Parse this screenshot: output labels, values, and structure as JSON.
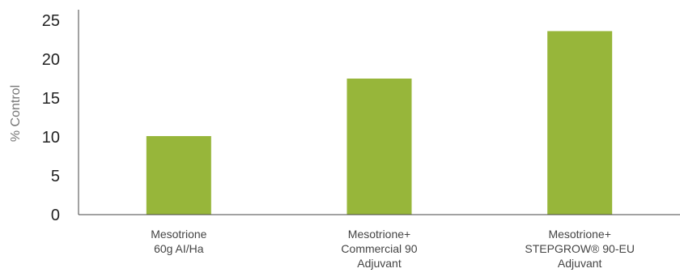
{
  "chart_data": {
    "type": "bar",
    "categories": [
      [
        "Mesotrione",
        "60g AI/Ha"
      ],
      [
        "Mesotrione+",
        "Commercial 90",
        "Adjuvant"
      ],
      [
        "Mesotrione+",
        "STEPGROW® 90-EU",
        "Adjuvant"
      ]
    ],
    "values": [
      10.1,
      17.5,
      23.6
    ],
    "ylabel": "% Control",
    "ylim": [
      0,
      25
    ],
    "yticks": [
      0,
      5,
      10,
      15,
      20,
      25
    ],
    "bar_color": "#97b63a",
    "axis_color": "#444444",
    "grid": false
  }
}
